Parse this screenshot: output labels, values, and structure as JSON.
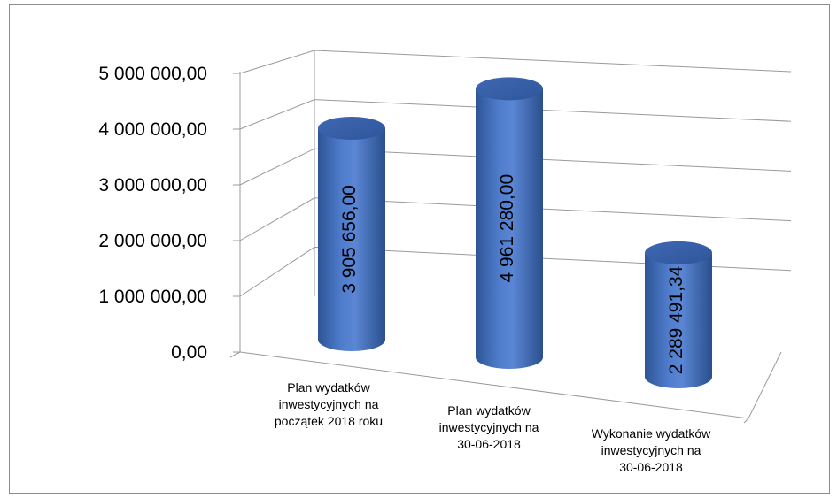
{
  "chart_data": {
    "type": "bar",
    "style": "3d-cylinder",
    "categories": [
      [
        "Plan wydatków",
        "inwestycyjnych na",
        "początek 2018 roku"
      ],
      [
        "Plan wydatków",
        "inwestycyjnych na",
        "30-06-2018"
      ],
      [
        "Wykonanie wydatków",
        "inwestycyjnych na",
        "30-06-2018"
      ]
    ],
    "values": [
      3905656.0,
      4961280.0,
      2289491.34
    ],
    "data_labels": [
      "3 905 656,00",
      "4 961 280,00",
      "2 289 491,34"
    ],
    "y_ticks": [
      "0,00",
      "1 000 000,00",
      "2 000 000,00",
      "3 000 000,00",
      "4 000 000,00",
      "5 000 000,00"
    ],
    "ylim": [
      0,
      5000000
    ],
    "grid": true,
    "legend": "none",
    "bar_color": "#4472c4",
    "title": "",
    "xlabel": "",
    "ylabel": ""
  }
}
